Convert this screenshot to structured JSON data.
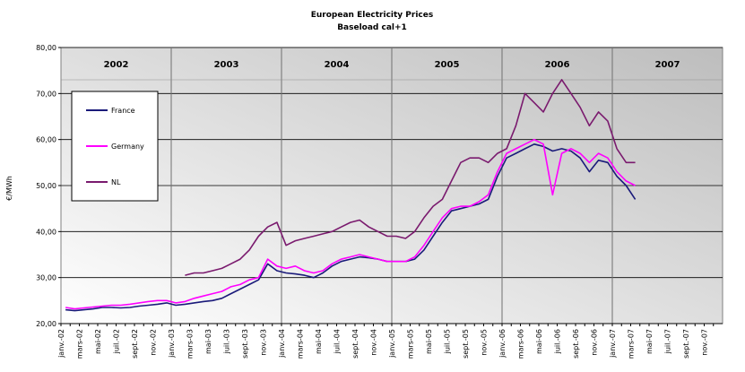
{
  "chart_data": {
    "type": "line",
    "title": "European Electricity Prices",
    "subtitle": "Baseload cal+1",
    "y_label": "€/MWh",
    "year_labels": [
      "2002",
      "2003",
      "2004",
      "2005",
      "2006",
      "2007"
    ],
    "categories": [
      "janv.-02",
      null,
      "mars-02",
      null,
      "mai-02",
      null,
      "juil.-02",
      null,
      "sept.-02",
      null,
      "nov.-02",
      null,
      "janv.-03",
      null,
      "mars-03",
      null,
      "mai-03",
      null,
      "juil.-03",
      null,
      "sept.-03",
      null,
      "nov.-03",
      null,
      "janv.-04",
      null,
      "mars-04",
      null,
      "mai-04",
      null,
      "juil.-04",
      null,
      "sept.-04",
      null,
      "nov.-04",
      null,
      "janv.-05",
      null,
      "mars-05",
      null,
      "mai-05",
      null,
      "juil.-05",
      null,
      "sept.-05",
      null,
      "nov.-05",
      null,
      "janv.-06",
      null,
      "mars-06",
      null,
      "mai-06",
      null,
      "juil.-06",
      null,
      "sept.-06",
      null,
      "nov.-06",
      null,
      "janv.-07",
      null,
      "mars-07",
      null,
      "mai-07",
      null,
      "juil.-07",
      null,
      "sept.-07",
      null,
      "nov.-07",
      null
    ],
    "series": [
      {
        "name": "France",
        "color": "#1a1a7a",
        "values": [
          23,
          22.8,
          23,
          23.2,
          23.5,
          23.5,
          23.4,
          23.5,
          23.8,
          24,
          24.2,
          24.5,
          24,
          24.2,
          24.5,
          24.8,
          25,
          25.5,
          26.5,
          27.5,
          28.5,
          29.5,
          33,
          31.5,
          31,
          30.8,
          30.5,
          30,
          31,
          32.5,
          33.5,
          34,
          34.5,
          34.3,
          34,
          33.5,
          33.5,
          33.5,
          34,
          36,
          39,
          42,
          44.5,
          45,
          45.5,
          46,
          47,
          52,
          56,
          57,
          58,
          59,
          58.5,
          57.5,
          58,
          57.5,
          56,
          53,
          55.5,
          55,
          52,
          50,
          47,
          null,
          null,
          null,
          null,
          null,
          null,
          null,
          null,
          null
        ]
      },
      {
        "name": "Germany",
        "color": "#ff00ff",
        "values": [
          23.5,
          23.2,
          23.4,
          23.6,
          23.8,
          24,
          24,
          24.2,
          24.5,
          24.8,
          25,
          25,
          24.5,
          24.8,
          25.5,
          26,
          26.5,
          27,
          28,
          28.5,
          29.5,
          30,
          34,
          32.5,
          32,
          32.5,
          31.5,
          31,
          31.5,
          33,
          34,
          34.5,
          35,
          34.5,
          34,
          33.5,
          33.5,
          33.5,
          34.5,
          37,
          40,
          43,
          45,
          45.5,
          45.5,
          46.5,
          48,
          53,
          57,
          58,
          59,
          60,
          59,
          48,
          57,
          58,
          57,
          55,
          57,
          56,
          53,
          51,
          50,
          null,
          null,
          null,
          null,
          null,
          null,
          null,
          null,
          null
        ]
      },
      {
        "name": "NL",
        "color": "#7a1a6e",
        "values": [
          null,
          null,
          null,
          null,
          null,
          null,
          null,
          null,
          null,
          null,
          null,
          null,
          null,
          30.5,
          31,
          31,
          31.5,
          32,
          33,
          34,
          36,
          39,
          41,
          42,
          37,
          38,
          38.5,
          39,
          39.5,
          40,
          41,
          42,
          42.5,
          41,
          40,
          39,
          39,
          38.5,
          40,
          43,
          45.5,
          47,
          51,
          55,
          56,
          56,
          55,
          57,
          58,
          63,
          70,
          68,
          66,
          70,
          73,
          70,
          67,
          63,
          66,
          64,
          58,
          55,
          55,
          null,
          null,
          null,
          null,
          null,
          null,
          null,
          null,
          null
        ]
      }
    ],
    "ylim": [
      20,
      80
    ],
    "yticks": [
      {
        "value": 20,
        "label": "20,00"
      },
      {
        "value": 30,
        "label": "30,00"
      },
      {
        "value": 40,
        "label": "40,00"
      },
      {
        "value": 50,
        "label": "50,00"
      },
      {
        "value": 60,
        "label": "60,00"
      },
      {
        "value": 70,
        "label": "70,00"
      },
      {
        "value": 80,
        "label": "80,00"
      }
    ],
    "grid": true
  }
}
